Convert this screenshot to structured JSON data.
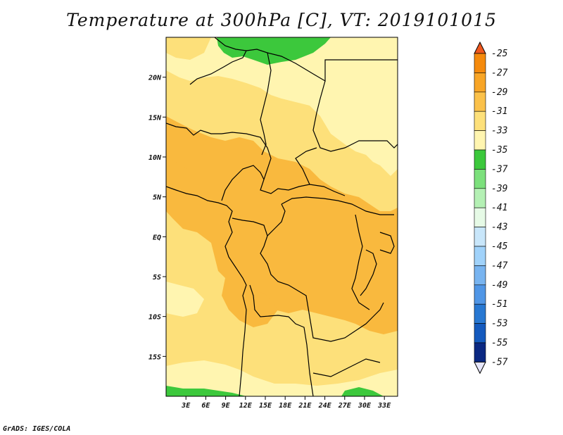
{
  "title": "Temperature at 300hPa [C], VT: 2019101015",
  "credit": "GrADS: IGES/COLA",
  "map": {
    "region": "Central Africa",
    "lon_range": [
      0,
      35
    ],
    "lat_range": [
      -20,
      25
    ],
    "x_ticks": [
      {
        "value": 3,
        "label": "3E"
      },
      {
        "value": 6,
        "label": "6E"
      },
      {
        "value": 9,
        "label": "9E"
      },
      {
        "value": 12,
        "label": "12E"
      },
      {
        "value": 15,
        "label": "15E"
      },
      {
        "value": 18,
        "label": "18E"
      },
      {
        "value": 21,
        "label": "21E"
      },
      {
        "value": 24,
        "label": "24E"
      },
      {
        "value": 27,
        "label": "27E"
      },
      {
        "value": 30,
        "label": "30E"
      },
      {
        "value": 33,
        "label": "33E"
      }
    ],
    "y_ticks": [
      {
        "value": 20,
        "label": "20N"
      },
      {
        "value": 15,
        "label": "15N"
      },
      {
        "value": 10,
        "label": "10N"
      },
      {
        "value": 5,
        "label": "5N"
      },
      {
        "value": 0,
        "label": "EQ"
      },
      {
        "value": -5,
        "label": "5S"
      },
      {
        "value": -10,
        "label": "10S"
      },
      {
        "value": -15,
        "label": "15S"
      }
    ],
    "colors": {
      "t_minus35_33": "#fff5b0",
      "t_minus33_31": "#fde07a",
      "t_minus31_29": "#f9b93e",
      "t_minus37_35": "#3cc83c",
      "border": "#000000"
    }
  },
  "colorbar": {
    "levels": [
      "-25",
      "-27",
      "-29",
      "-31",
      "-33",
      "-35",
      "-37",
      "-39",
      "-41",
      "-43",
      "-45",
      "-47",
      "-49",
      "-51",
      "-53",
      "-55",
      "-57"
    ],
    "colors": [
      "#f0581e",
      "#f58a0c",
      "#f8a526",
      "#fbc14a",
      "#fde07a",
      "#fff5b0",
      "#3cc83c",
      "#7ce07c",
      "#b4f0b4",
      "#e6fae6",
      "#c8e6fa",
      "#a0d2fa",
      "#78b4f0",
      "#5096e6",
      "#2878d2",
      "#145abe",
      "#0a2882",
      "#0a0a5a"
    ],
    "top_color": "#f0581e",
    "bottom_color": "#e6e6fa"
  }
}
